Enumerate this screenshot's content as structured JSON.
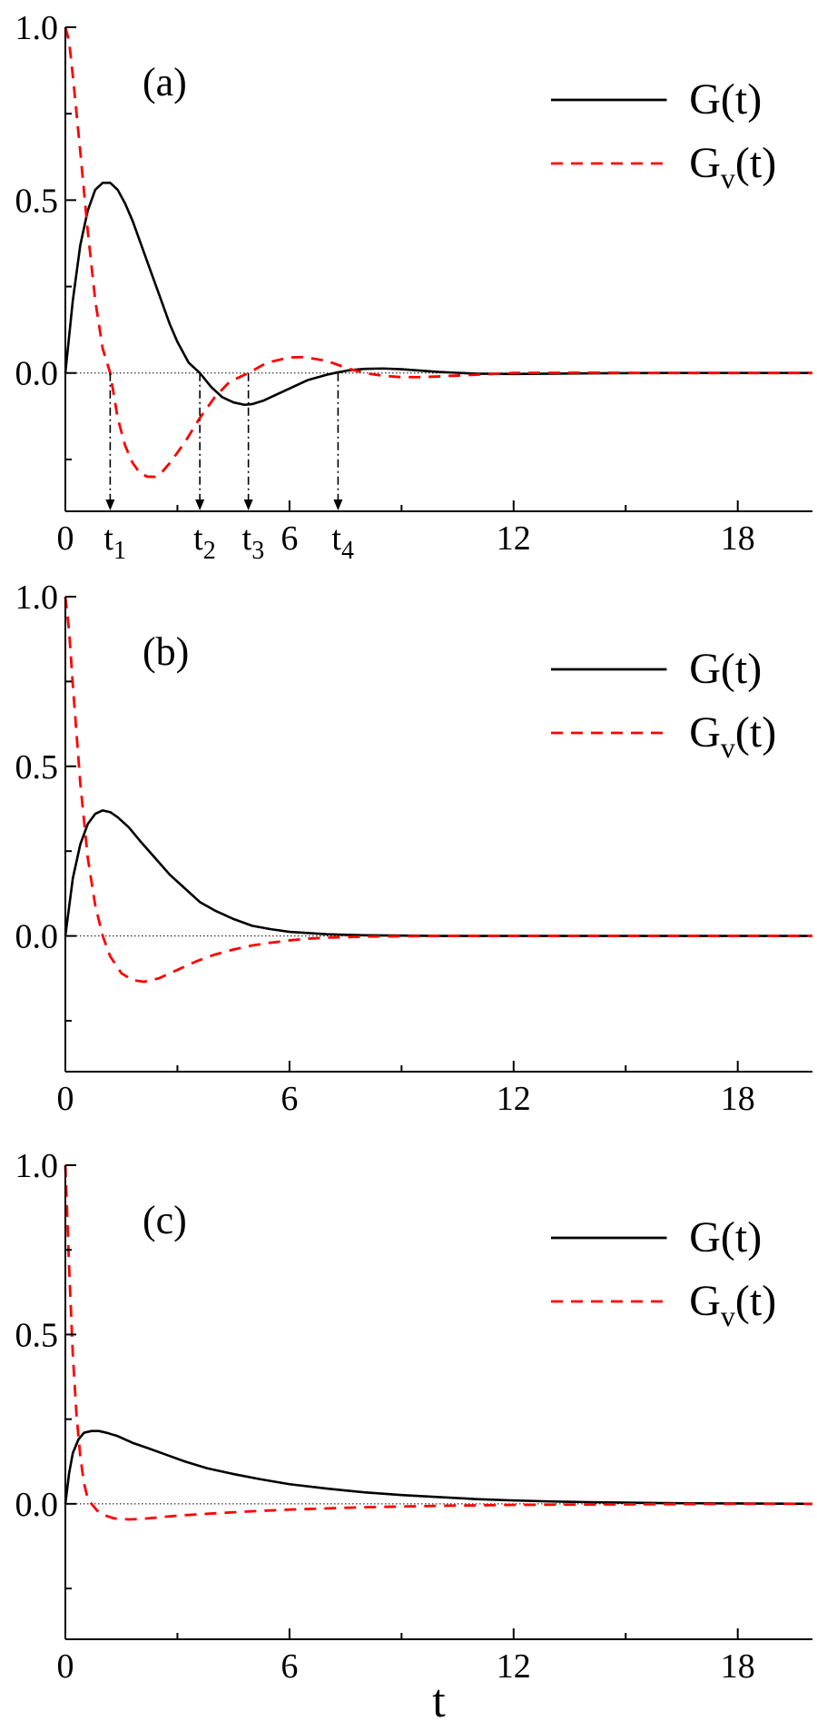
{
  "chart_data": [
    {
      "type": "line",
      "panel_label": "(a)",
      "xlim": [
        0,
        20
      ],
      "ylim": [
        -0.4,
        1.0
      ],
      "x_ticks": [
        {
          "value": 0,
          "label": "0"
        },
        {
          "value": 6,
          "label": "6"
        },
        {
          "value": 12,
          "label": "12"
        },
        {
          "value": 18,
          "label": "18"
        }
      ],
      "y_ticks": [
        {
          "value": 0.0,
          "label": "0.0"
        },
        {
          "value": 0.5,
          "label": "0.5"
        },
        {
          "value": 1.0,
          "label": "1.0"
        }
      ],
      "legend": [
        {
          "main": "G(t)",
          "base": "G",
          "sub": "",
          "tail": "(t)",
          "style": "solid"
        },
        {
          "main": "Gv(t)",
          "base": "G",
          "sub": "v",
          "tail": "(t)",
          "style": "dashed"
        }
      ],
      "legend_position": "top-right",
      "reference_line_y": 0.0,
      "annotations": [
        {
          "x": 1.2,
          "base": "t",
          "sub": "1",
          "text": "t1"
        },
        {
          "x": 3.6,
          "base": "t",
          "sub": "2",
          "text": "t2"
        },
        {
          "x": 4.9,
          "base": "t",
          "sub": "3",
          "text": "t3"
        },
        {
          "x": 7.3,
          "base": "t",
          "sub": "4",
          "text": "t4"
        }
      ],
      "series": [
        {
          "name": "G(t)",
          "color": "#000000",
          "style": "solid",
          "x": [
            0,
            0.2,
            0.4,
            0.6,
            0.8,
            1.0,
            1.2,
            1.4,
            1.6,
            1.8,
            2.0,
            2.2,
            2.5,
            2.8,
            3.0,
            3.3,
            3.6,
            3.9,
            4.2,
            4.5,
            4.8,
            5.0,
            5.3,
            5.6,
            6.0,
            6.5,
            7.0,
            7.3,
            7.6,
            8.0,
            8.5,
            9.0,
            9.5,
            10.0,
            11.0,
            12.0,
            14.0,
            16.0,
            18.0,
            20.0
          ],
          "y": [
            0,
            0.21,
            0.37,
            0.47,
            0.53,
            0.55,
            0.55,
            0.53,
            0.49,
            0.44,
            0.38,
            0.32,
            0.23,
            0.14,
            0.09,
            0.03,
            0.0,
            -0.04,
            -0.07,
            -0.085,
            -0.092,
            -0.09,
            -0.08,
            -0.065,
            -0.045,
            -0.02,
            -0.005,
            0.002,
            0.008,
            0.012,
            0.013,
            0.011,
            0.007,
            0.003,
            -0.002,
            -0.003,
            -0.001,
            0.0,
            0.0,
            0.0
          ]
        },
        {
          "name": "Gv(t)",
          "color": "#ff0000",
          "style": "dashed",
          "x": [
            0,
            0.1,
            0.2,
            0.4,
            0.6,
            0.8,
            1.0,
            1.2,
            1.4,
            1.6,
            1.8,
            2.0,
            2.2,
            2.4,
            2.6,
            2.8,
            3.0,
            3.2,
            3.6,
            4.0,
            4.4,
            4.9,
            5.4,
            6.0,
            6.4,
            7.0,
            7.6,
            8.0,
            8.5,
            9.0,
            9.5,
            10.0,
            11.0,
            12.0,
            14.0,
            16.0,
            18.0,
            20.0
          ],
          "y": [
            1.0,
            0.96,
            0.86,
            0.64,
            0.41,
            0.21,
            0.07,
            0.0,
            -0.13,
            -0.21,
            -0.26,
            -0.29,
            -0.3,
            -0.3,
            -0.285,
            -0.26,
            -0.23,
            -0.2,
            -0.13,
            -0.07,
            -0.025,
            0.0,
            0.03,
            0.045,
            0.046,
            0.035,
            0.012,
            0.0,
            -0.008,
            -0.012,
            -0.012,
            -0.01,
            -0.005,
            0.0,
            0.001,
            0.0,
            0.0,
            0.0
          ]
        }
      ]
    },
    {
      "type": "line",
      "panel_label": "(b)",
      "xlim": [
        0,
        20
      ],
      "ylim": [
        -0.4,
        1.0
      ],
      "x_ticks": [
        {
          "value": 0,
          "label": "0"
        },
        {
          "value": 6,
          "label": "6"
        },
        {
          "value": 12,
          "label": "12"
        },
        {
          "value": 18,
          "label": "18"
        }
      ],
      "y_ticks": [
        {
          "value": 0.0,
          "label": "0.0"
        },
        {
          "value": 0.5,
          "label": "0.5"
        },
        {
          "value": 1.0,
          "label": "1.0"
        }
      ],
      "legend": [
        {
          "main": "G(t)",
          "base": "G",
          "sub": "",
          "tail": "(t)",
          "style": "solid"
        },
        {
          "main": "Gv(t)",
          "base": "G",
          "sub": "v",
          "tail": "(t)",
          "style": "dashed"
        }
      ],
      "legend_position": "top-right",
      "reference_line_y": 0.0,
      "series": [
        {
          "name": "G(t)",
          "color": "#000000",
          "style": "solid",
          "x": [
            0,
            0.2,
            0.4,
            0.6,
            0.8,
            1.0,
            1.2,
            1.4,
            1.7,
            2.0,
            2.4,
            2.8,
            3.2,
            3.6,
            4.0,
            4.5,
            5.0,
            5.5,
            6.0,
            7.0,
            8.0,
            9.0,
            10.0,
            12.0,
            14.0,
            16.0,
            18.0,
            20.0
          ],
          "y": [
            0,
            0.17,
            0.27,
            0.33,
            0.36,
            0.37,
            0.365,
            0.35,
            0.32,
            0.28,
            0.23,
            0.18,
            0.14,
            0.1,
            0.075,
            0.05,
            0.03,
            0.02,
            0.012,
            0.005,
            0.002,
            0.001,
            0.0,
            0.0,
            0.0,
            0.0,
            0.0,
            0.0
          ]
        },
        {
          "name": "Gv(t)",
          "color": "#ff0000",
          "style": "dashed",
          "x": [
            0,
            0.1,
            0.2,
            0.4,
            0.6,
            0.8,
            1.0,
            1.2,
            1.5,
            1.8,
            2.1,
            2.5,
            3.0,
            3.5,
            4.0,
            4.5,
            5.0,
            5.5,
            6.0,
            6.5,
            7.0,
            8.0,
            9.0,
            10.0,
            12.0,
            14.0,
            16.0,
            18.0,
            20.0
          ],
          "y": [
            1.0,
            0.9,
            0.74,
            0.45,
            0.23,
            0.09,
            0.0,
            -0.06,
            -0.11,
            -0.13,
            -0.135,
            -0.125,
            -0.1,
            -0.075,
            -0.055,
            -0.04,
            -0.028,
            -0.02,
            -0.013,
            -0.008,
            -0.005,
            -0.002,
            -0.001,
            0.0,
            0.0,
            0.0,
            0.0,
            0.0,
            0.0
          ]
        }
      ]
    },
    {
      "type": "line",
      "panel_label": "(c)",
      "xlim": [
        0,
        20
      ],
      "ylim": [
        -0.4,
        1.0
      ],
      "x_ticks": [
        {
          "value": 0,
          "label": "0"
        },
        {
          "value": 6,
          "label": "6"
        },
        {
          "value": 12,
          "label": "12"
        },
        {
          "value": 18,
          "label": "18"
        }
      ],
      "y_ticks": [
        {
          "value": 0.0,
          "label": "0.0"
        },
        {
          "value": 0.5,
          "label": "0.5"
        },
        {
          "value": 1.0,
          "label": "1.0"
        }
      ],
      "legend": [
        {
          "main": "G(t)",
          "base": "G",
          "sub": "",
          "tail": "(t)",
          "style": "solid"
        },
        {
          "main": "Gv(t)",
          "base": "G",
          "sub": "v",
          "tail": "(t)",
          "style": "dashed"
        }
      ],
      "legend_position": "top-right",
      "reference_line_y": 0.0,
      "xlabel": "t",
      "series": [
        {
          "name": "G(t)",
          "color": "#000000",
          "style": "solid",
          "x": [
            0,
            0.1,
            0.2,
            0.35,
            0.5,
            0.7,
            0.9,
            1.1,
            1.4,
            1.8,
            2.2,
            2.7,
            3.2,
            3.8,
            4.5,
            5.2,
            6.0,
            7.0,
            8.0,
            9.0,
            10.0,
            11.0,
            12.0,
            13.0,
            14.0,
            16.0,
            18.0,
            20.0
          ],
          "y": [
            0,
            0.09,
            0.15,
            0.19,
            0.21,
            0.215,
            0.215,
            0.21,
            0.2,
            0.18,
            0.165,
            0.145,
            0.125,
            0.105,
            0.088,
            0.073,
            0.058,
            0.045,
            0.034,
            0.026,
            0.02,
            0.014,
            0.01,
            0.007,
            0.005,
            0.002,
            0.001,
            0.0
          ]
        },
        {
          "name": "Gv(t)",
          "color": "#ff0000",
          "style": "dashed",
          "x": [
            0,
            0.05,
            0.1,
            0.2,
            0.3,
            0.4,
            0.5,
            0.6,
            0.7,
            0.85,
            1.0,
            1.3,
            1.7,
            2.0,
            2.5,
            3.0,
            4.0,
            5.0,
            6.0,
            8.0,
            10.0,
            12.0,
            14.0,
            16.0,
            18.0,
            20.0
          ],
          "y": [
            1.0,
            0.85,
            0.7,
            0.44,
            0.26,
            0.14,
            0.06,
            0.015,
            0.0,
            -0.02,
            -0.032,
            -0.043,
            -0.046,
            -0.045,
            -0.04,
            -0.035,
            -0.028,
            -0.022,
            -0.017,
            -0.01,
            -0.006,
            -0.003,
            -0.002,
            -0.001,
            0.0,
            0.0
          ]
        }
      ]
    }
  ]
}
